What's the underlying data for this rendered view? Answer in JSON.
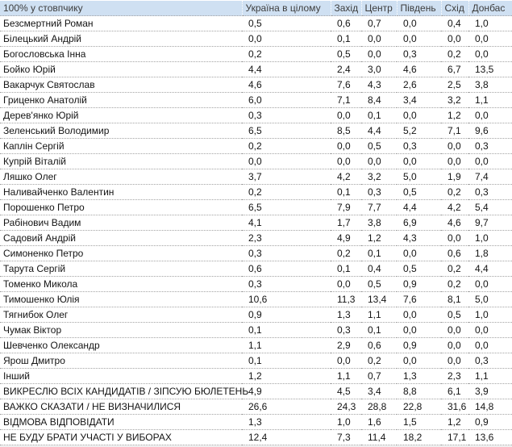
{
  "chart_data": {
    "type": "table",
    "title": "100% у стовпчику",
    "columns": [
      "Україна в цілому",
      "Захід",
      "Центр",
      "Південь",
      "Схід",
      "Донбас"
    ],
    "rows": [
      {
        "label": "Безсмертний Роман",
        "values": [
          "0,5",
          "0,6",
          "0,7",
          "0,0",
          "0,4",
          "1,0"
        ]
      },
      {
        "label": "Білецький Андрій",
        "values": [
          "0,0",
          "0,1",
          "0,0",
          "0,0",
          "0,0",
          "0,0"
        ]
      },
      {
        "label": "Богословська Інна",
        "values": [
          "0,2",
          "0,5",
          "0,0",
          "0,3",
          "0,2",
          "0,0"
        ]
      },
      {
        "label": "Бойко Юрій",
        "values": [
          "4,4",
          "2,4",
          "3,0",
          "4,6",
          "6,7",
          "13,5"
        ]
      },
      {
        "label": "Вакарчук Святослав",
        "values": [
          "4,6",
          "7,6",
          "4,3",
          "2,6",
          "2,5",
          "3,8"
        ]
      },
      {
        "label": "Гриценко Анатолій",
        "values": [
          "6,0",
          "7,1",
          "8,4",
          "3,4",
          "3,2",
          "1,1"
        ]
      },
      {
        "label": "Дерев'янко Юрій",
        "values": [
          "0,3",
          "0,0",
          "0,1",
          "0,0",
          "1,2",
          "0,0"
        ]
      },
      {
        "label": "Зеленський Володимир",
        "values": [
          "6,5",
          "8,5",
          "4,4",
          "5,2",
          "7,1",
          "9,6"
        ]
      },
      {
        "label": "Каплін Сергій",
        "values": [
          "0,2",
          "0,0",
          "0,5",
          "0,3",
          "0,0",
          "0,3"
        ]
      },
      {
        "label": "Купрій Віталій",
        "values": [
          "0,0",
          "0,0",
          "0,0",
          "0,0",
          "0,0",
          "0,0"
        ]
      },
      {
        "label": "Ляшко Олег",
        "values": [
          "3,7",
          "4,2",
          "3,2",
          "5,0",
          "1,9",
          "7,4"
        ]
      },
      {
        "label": "Наливайченко Валентин",
        "values": [
          "0,2",
          "0,1",
          "0,3",
          "0,5",
          "0,2",
          "0,3"
        ]
      },
      {
        "label": "Порошенко Петро",
        "values": [
          "6,5",
          "7,9",
          "7,7",
          "4,4",
          "4,2",
          "5,4"
        ]
      },
      {
        "label": "Рабінович Вадим",
        "values": [
          "4,1",
          "1,7",
          "3,8",
          "6,9",
          "4,6",
          "9,7"
        ]
      },
      {
        "label": "Садовий Андрій",
        "values": [
          "2,3",
          "4,9",
          "1,2",
          "4,3",
          "0,0",
          "1,0"
        ]
      },
      {
        "label": "Симоненко Петро",
        "values": [
          "0,3",
          "0,2",
          "0,1",
          "0,0",
          "0,6",
          "1,8"
        ]
      },
      {
        "label": "Тарута Сергій",
        "values": [
          "0,6",
          "0,1",
          "0,4",
          "0,5",
          "0,2",
          "4,4"
        ]
      },
      {
        "label": "Томенко Микола",
        "values": [
          "0,3",
          "0,0",
          "0,5",
          "0,9",
          "0,2",
          "0,0"
        ]
      },
      {
        "label": "Тимошенко Юлія",
        "values": [
          "10,6",
          "11,3",
          "13,4",
          "7,6",
          "8,1",
          "5,0"
        ]
      },
      {
        "label": "Тягнибок Олег",
        "values": [
          "0,9",
          "1,3",
          "1,1",
          "0,0",
          "0,5",
          "1,0"
        ]
      },
      {
        "label": "Чумак Віктор",
        "values": [
          "0,1",
          "0,3",
          "0,1",
          "0,0",
          "0,0",
          "0,0"
        ]
      },
      {
        "label": "Шевченко Олександр",
        "values": [
          "1,1",
          "2,9",
          "0,6",
          "0,9",
          "0,0",
          "0,0"
        ]
      },
      {
        "label": "Ярош Дмитро",
        "values": [
          "0,1",
          "0,0",
          "0,2",
          "0,0",
          "0,0",
          "0,3"
        ]
      },
      {
        "label": "Інший",
        "values": [
          "1,2",
          "1,1",
          "0,7",
          "1,3",
          "2,3",
          "1,1"
        ]
      },
      {
        "label": "ВИКРЕСЛЮ ВСІХ КАНДИДАТІВ / ЗІПСУЮ БЮЛЕТЕНЬ",
        "values": [
          "4,9",
          "4,5",
          "3,4",
          "8,8",
          "6,1",
          "3,9"
        ]
      },
      {
        "label": "ВАЖКО СКАЗАТИ / НЕ ВИЗНАЧИЛИСЯ",
        "values": [
          "26,6",
          "24,3",
          "28,8",
          "22,8",
          "31,6",
          "14,8"
        ]
      },
      {
        "label": "ВІДМОВА ВІДПОВІДАТИ",
        "values": [
          "1,3",
          "1,0",
          "1,6",
          "1,5",
          "1,2",
          "0,9"
        ]
      },
      {
        "label": "НЕ БУДУ БРАТИ УЧАСТІ У ВИБОРАХ",
        "values": [
          "12,4",
          "7,3",
          "11,4",
          "18,2",
          "17,1",
          "13,6"
        ]
      }
    ],
    "legend_position": "none",
    "grid": "dotted-row-separators"
  },
  "colors": {
    "header_bg": "#cfe0f2",
    "header_text": "#3d3d3d",
    "body_text": "#141414",
    "row_border": "#a3a3a3",
    "page_bg": "#efefef",
    "table_bg": "#ffffff"
  }
}
